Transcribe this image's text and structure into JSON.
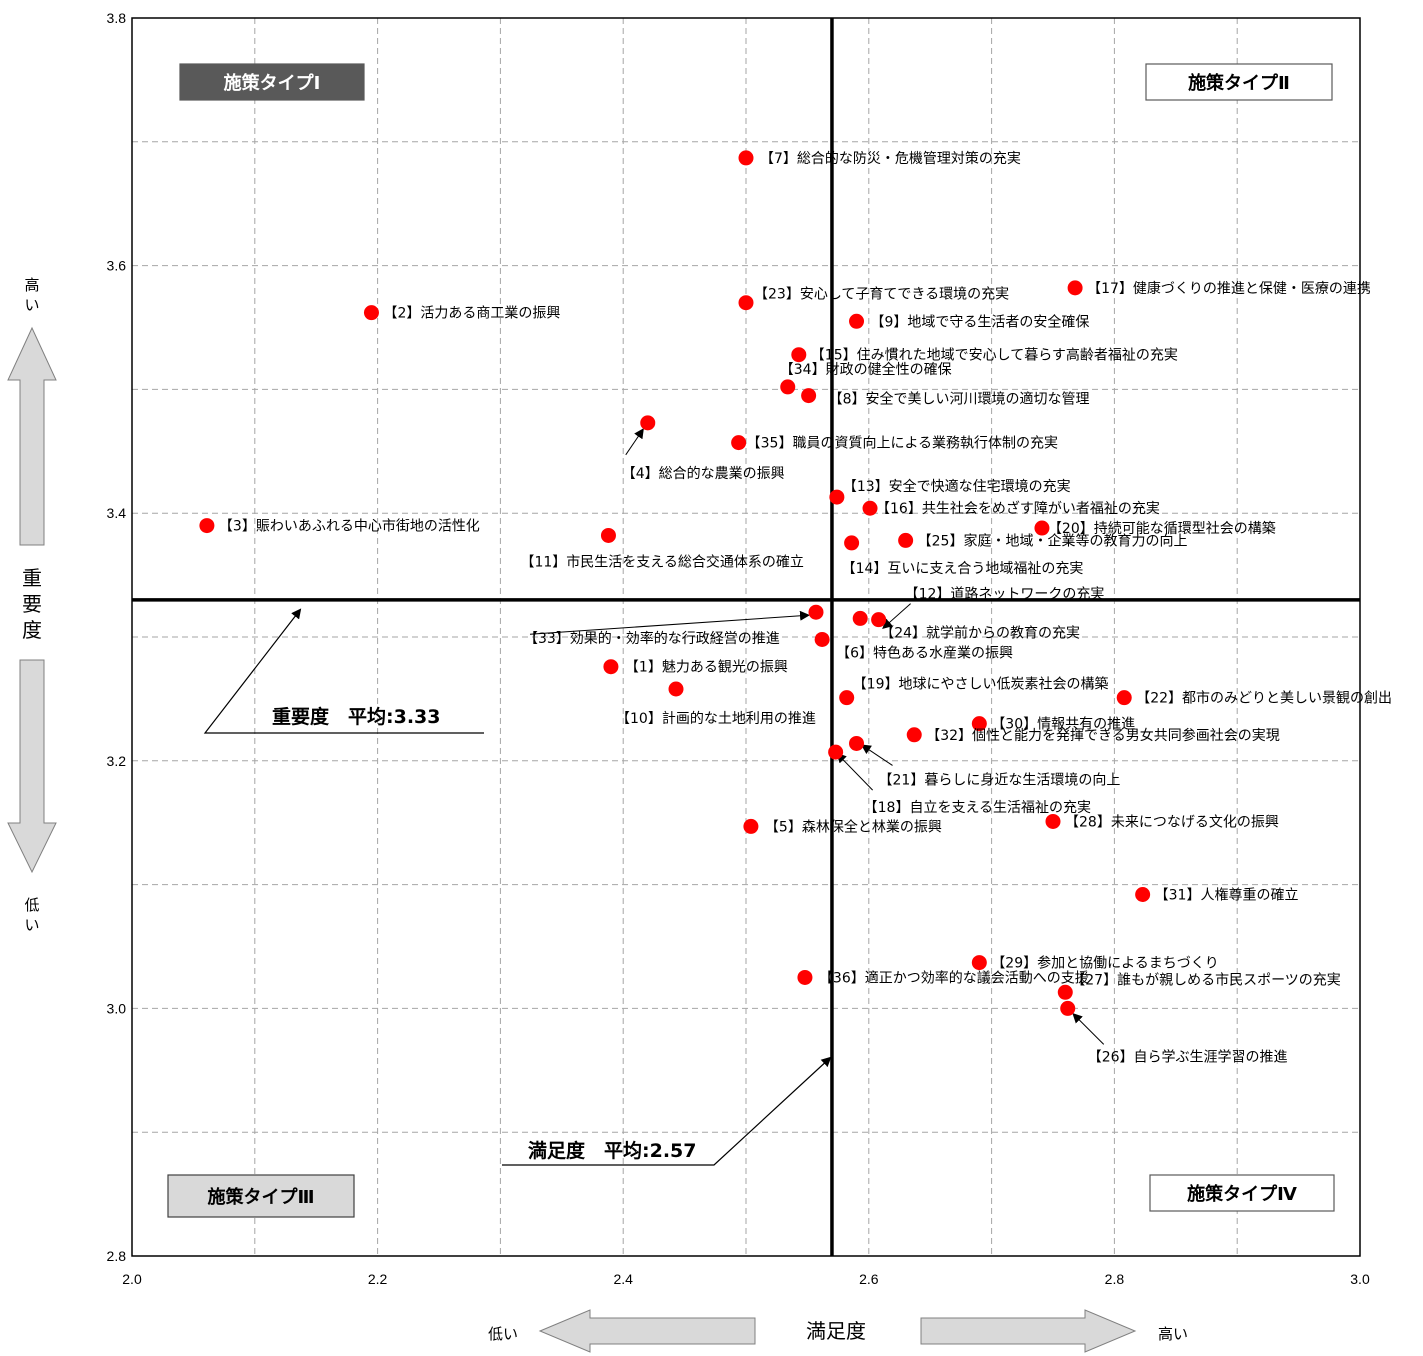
{
  "chart_data": {
    "type": "scatter",
    "xlabel": "満足度",
    "ylabel": "重要度",
    "xlim": [
      2.0,
      3.0
    ],
    "ylim": [
      2.8,
      3.8
    ],
    "xticks": [
      "2.0",
      "2.2",
      "2.4",
      "2.6",
      "2.8",
      "3.0"
    ],
    "yticks": [
      "2.8",
      "3.0",
      "3.2",
      "3.4",
      "3.6",
      "3.8"
    ],
    "grid": true,
    "x_low": "低い",
    "x_high": "高い",
    "y_high": "高い",
    "y_low": "低い",
    "mean_x": 2.57,
    "mean_y": 3.33,
    "mean_x_label": "満足度　平均:2.57",
    "mean_y_label": "重要度　平均:3.33",
    "quadrants": [
      {
        "label": "施策タイプⅠ",
        "style": "dark"
      },
      {
        "label": "施策タイプⅡ",
        "style": "white"
      },
      {
        "label": "施策タイプⅢ",
        "style": "gray"
      },
      {
        "label": "施策タイプⅣ",
        "style": "white"
      }
    ],
    "marker_color": "#ff0000",
    "points": [
      {
        "label": "【1】魅力ある観光の振興",
        "x": 2.39,
        "y": 3.276
      },
      {
        "label": "【2】活力ある商工業の振興",
        "x": 2.195,
        "y": 3.562
      },
      {
        "label": "【3】賑わいあふれる中心市街地の活性化",
        "x": 2.061,
        "y": 3.39
      },
      {
        "label": "【4】総合的な農業の振興",
        "x": 2.42,
        "y": 3.473
      },
      {
        "label": "【5】森林保全と林業の振興",
        "x": 2.504,
        "y": 3.147
      },
      {
        "label": "【6】特色ある水産業の振興",
        "x": 2.562,
        "y": 3.298
      },
      {
        "label": "【7】総合的な防災・危機管理対策の充実",
        "x": 2.5,
        "y": 3.687
      },
      {
        "label": "【8】安全で美しい河川環境の適切な管理",
        "x": 2.551,
        "y": 3.495
      },
      {
        "label": "【9】地域で守る生活者の安全確保",
        "x": 2.59,
        "y": 3.555
      },
      {
        "label": "【10】計画的な土地利用の推進",
        "x": 2.443,
        "y": 3.258
      },
      {
        "label": "【11】市民生活を支える総合交通体系の確立",
        "x": 2.388,
        "y": 3.382
      },
      {
        "label": "【12】道路ネットワークの充実",
        "x": 2.608,
        "y": 3.314
      },
      {
        "label": "【13】安全で快適な住宅環境の充実",
        "x": 2.574,
        "y": 3.413
      },
      {
        "label": "【14】互いに支え合う地域福祉の充実",
        "x": 2.586,
        "y": 3.376
      },
      {
        "label": "【15】住み慣れた地域で安心して暮らす高齢者福祉の充実",
        "x": 2.543,
        "y": 3.528
      },
      {
        "label": "【16】共生社会をめざす障がい者福祉の充実",
        "x": 2.601,
        "y": 3.404
      },
      {
        "label": "【17】健康づくりの推進と保健・医療の連携",
        "x": 2.768,
        "y": 3.582
      },
      {
        "label": "【18】自立を支える生活福祉の充実",
        "x": 2.573,
        "y": 3.207
      },
      {
        "label": "【19】地球にやさしい低炭素社会の構築",
        "x": 2.582,
        "y": 3.251
      },
      {
        "label": "【20】持続可能な循環型社会の構築",
        "x": 2.741,
        "y": 3.388
      },
      {
        "label": "【21】暮らしに身近な生活環境の向上",
        "x": 2.59,
        "y": 3.214
      },
      {
        "label": "【22】都市のみどりと美しい景観の創出",
        "x": 2.808,
        "y": 3.251
      },
      {
        "label": "【23】安心して子育てできる環境の充実",
        "x": 2.5,
        "y": 3.57
      },
      {
        "label": "【24】就学前からの教育の充実",
        "x": 2.593,
        "y": 3.315
      },
      {
        "label": "【25】家庭・地域・企業等の教育力の向上",
        "x": 2.63,
        "y": 3.378
      },
      {
        "label": "【26】自ら学ぶ生涯学習の推進",
        "x": 2.762,
        "y": 3.0
      },
      {
        "label": "【27】誰もが親しめる市民スポーツの充実",
        "x": 2.76,
        "y": 3.013
      },
      {
        "label": "【28】未来につなげる文化の振興",
        "x": 2.75,
        "y": 3.151
      },
      {
        "label": "【29】参加と協働によるまちづくり",
        "x": 2.69,
        "y": 3.037
      },
      {
        "label": "【30】情報共有の推進",
        "x": 2.69,
        "y": 3.23
      },
      {
        "label": "【31】人権尊重の確立",
        "x": 2.823,
        "y": 3.092
      },
      {
        "label": "【32】個性と能力を発揮できる男女共同参画社会の実現",
        "x": 2.637,
        "y": 3.221
      },
      {
        "label": "【33】効果的・効率的な行政経営の推進",
        "x": 2.557,
        "y": 3.32
      },
      {
        "label": "【34】財政の健全性の確保",
        "x": 2.534,
        "y": 3.502
      },
      {
        "label": "【35】職員の資質向上による業務執行体制の充実",
        "x": 2.494,
        "y": 3.457
      },
      {
        "label": "【36】適正かつ効率的な議会活動への支援",
        "x": 2.548,
        "y": 3.025
      }
    ]
  }
}
